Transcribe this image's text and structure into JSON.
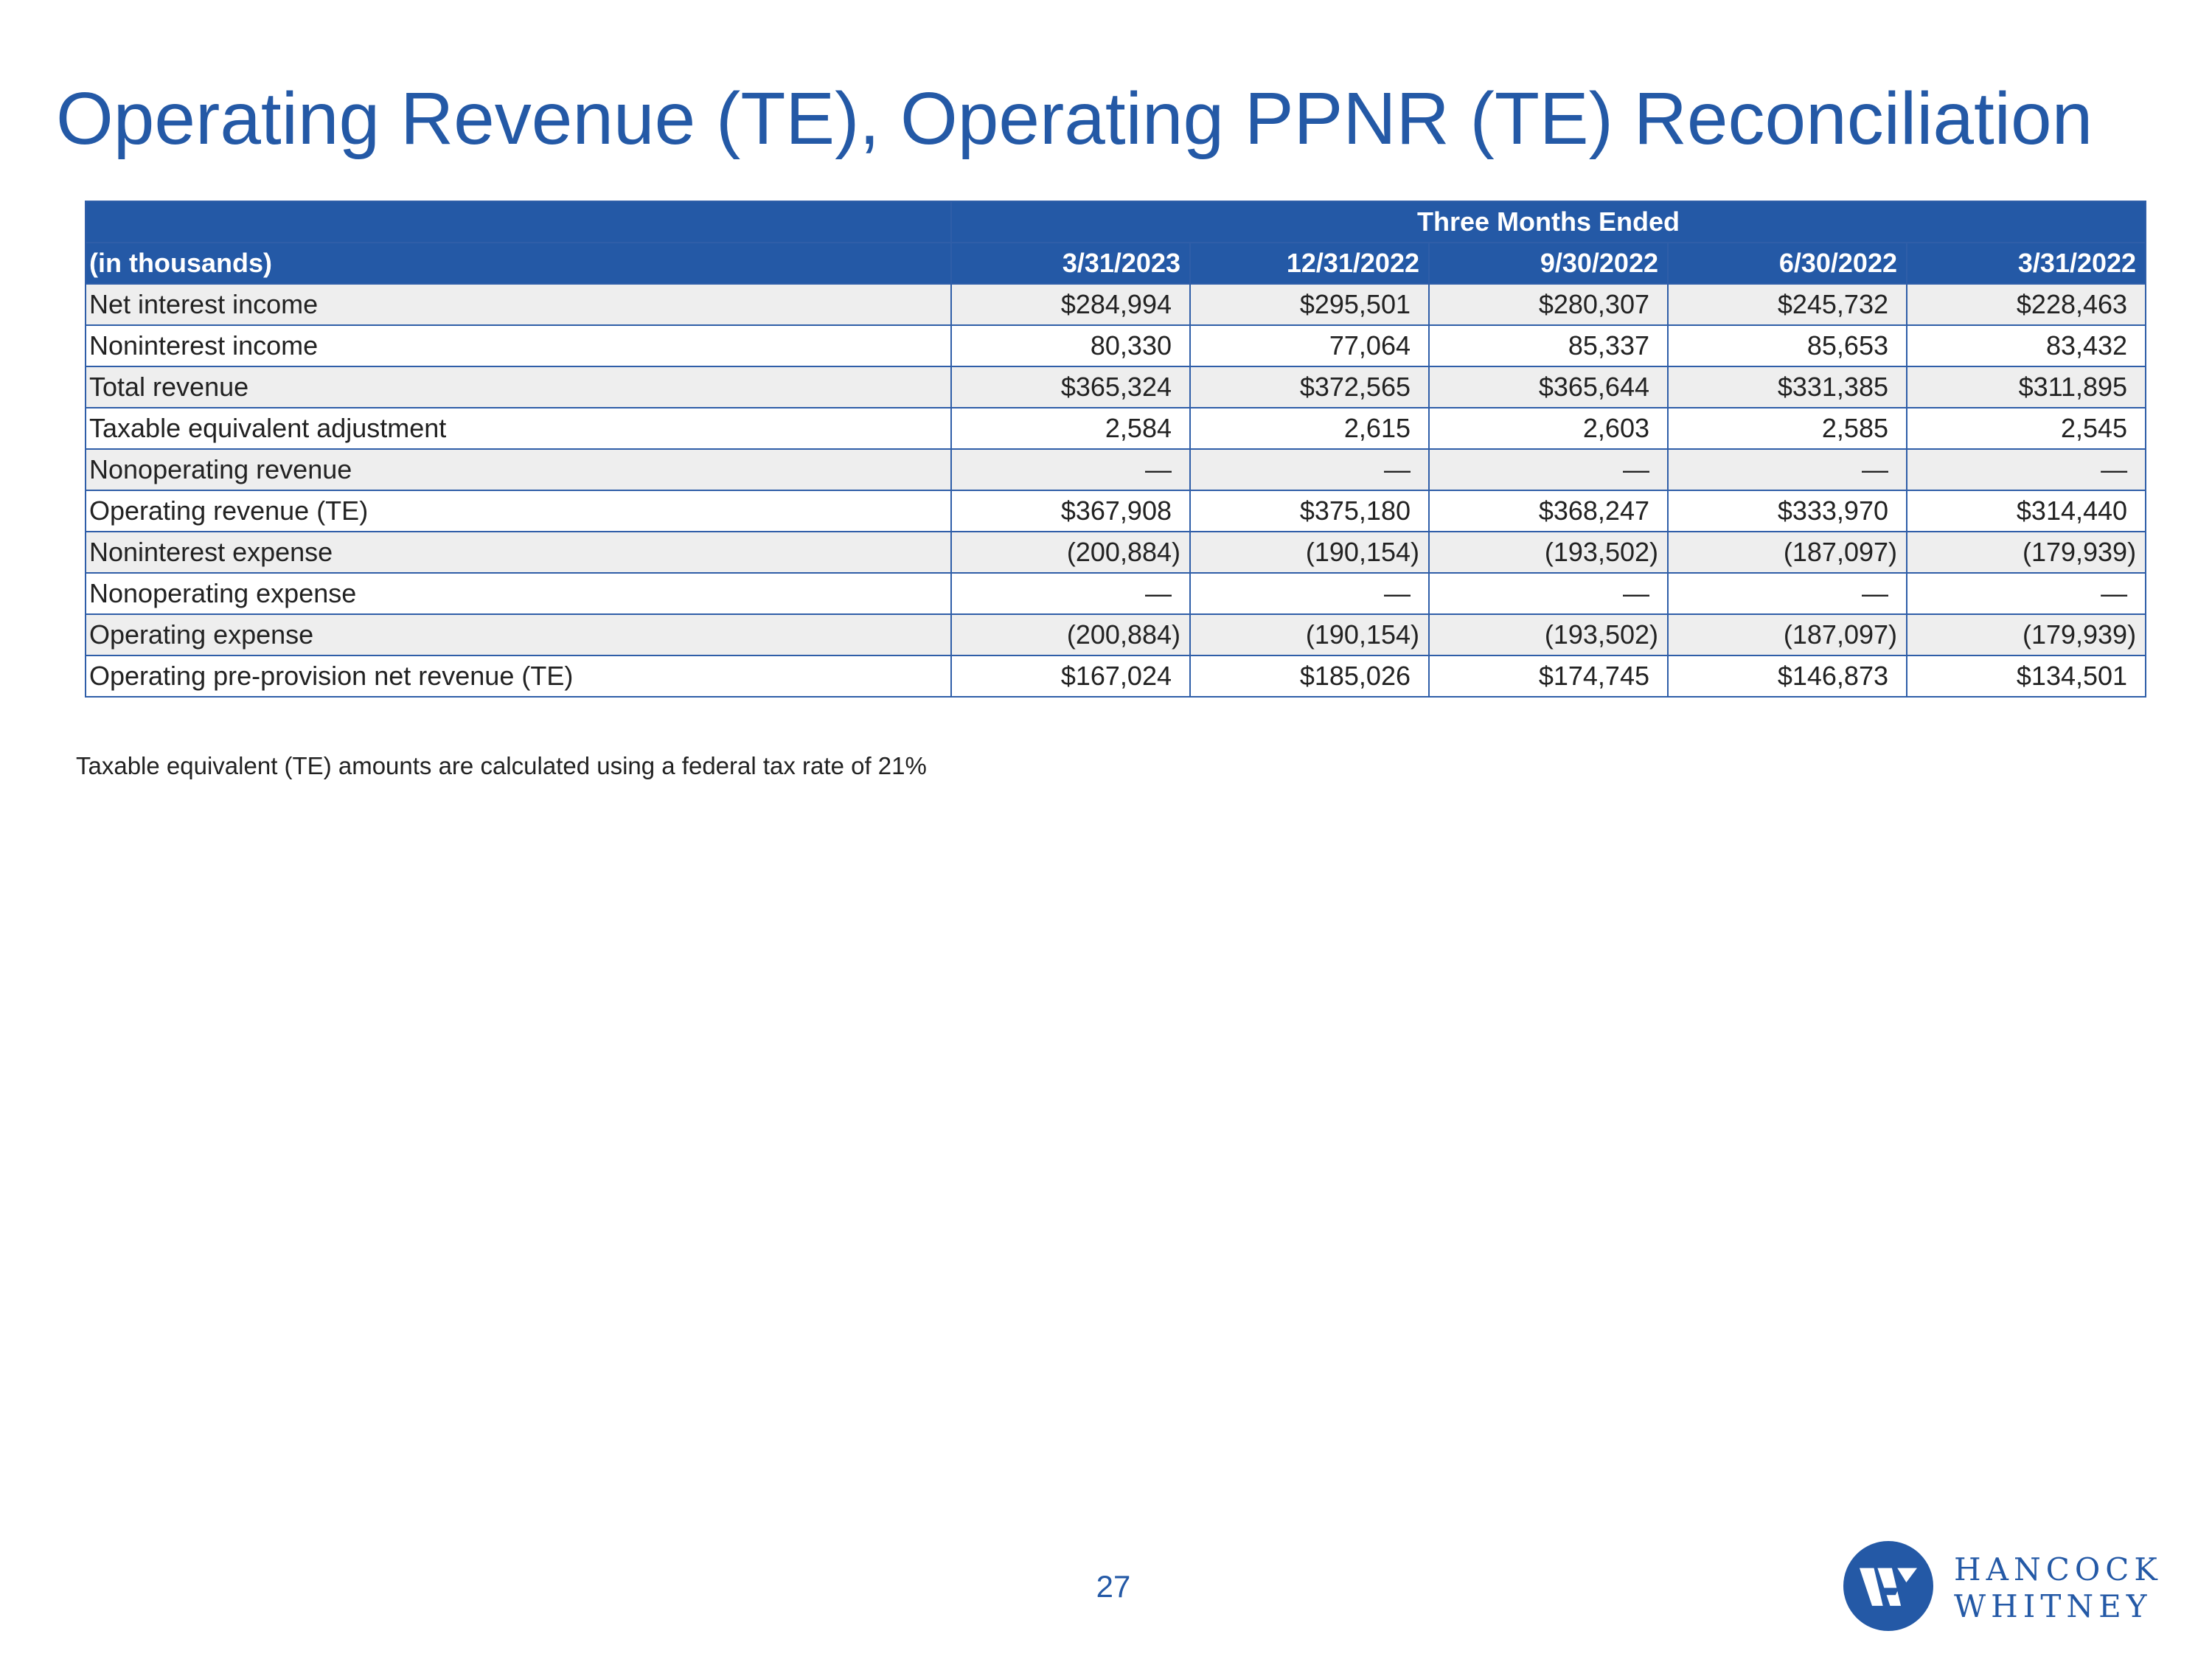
{
  "title": "Operating Revenue (TE), Operating PPNR (TE) Reconciliation",
  "table": {
    "group_header": "Three Months Ended",
    "label_header": "(in thousands)",
    "columns": [
      "3/31/2023",
      "12/31/2022",
      "9/30/2022",
      "6/30/2022",
      "3/31/2022"
    ],
    "rows": [
      {
        "label": "Net interest income",
        "values": [
          "$284,994",
          "$295,501",
          "$280,307",
          "$245,732",
          "$228,463"
        ],
        "shaded": true
      },
      {
        "label": "Noninterest income",
        "values": [
          "80,330",
          "77,064",
          "85,337",
          "85,653",
          "83,432"
        ],
        "shaded": false
      },
      {
        "label": "Total revenue",
        "values": [
          "$365,324",
          "$372,565",
          "$365,644",
          "$331,385",
          "$311,895"
        ],
        "shaded": true
      },
      {
        "label": "Taxable equivalent adjustment",
        "values": [
          "2,584",
          "2,615",
          "2,603",
          "2,585",
          "2,545"
        ],
        "shaded": false
      },
      {
        "label": "Nonoperating revenue",
        "values": [
          "—",
          "—",
          "—",
          "—",
          "—"
        ],
        "shaded": true
      },
      {
        "label": "Operating revenue (TE)",
        "values": [
          "$367,908",
          "$375,180",
          "$368,247",
          "$333,970",
          "$314,440"
        ],
        "shaded": false
      },
      {
        "label": "Noninterest expense",
        "values": [
          "(200,884)",
          "(190,154)",
          "(193,502)",
          "(187,097)",
          "(179,939)"
        ],
        "shaded": true
      },
      {
        "label": "Nonoperating expense",
        "values": [
          "—",
          "—",
          "—",
          "—",
          "—"
        ],
        "shaded": false
      },
      {
        "label": "Operating expense",
        "values": [
          "(200,884)",
          "(190,154)",
          "(193,502)",
          "(187,097)",
          "(179,939)"
        ],
        "shaded": true
      },
      {
        "label": "Operating pre-provision net revenue (TE)",
        "values": [
          "$167,024",
          "$185,026",
          "$174,745",
          "$146,873",
          "$134,501"
        ],
        "shaded": false
      }
    ]
  },
  "footnote": "Taxable equivalent (TE) amounts are calculated using a federal tax rate of 21%",
  "page_number": "27",
  "logo": {
    "line1": "HANCOCK",
    "line2": "WHITNEY",
    "icon": "hancock-whitney-logo-mark"
  },
  "colors": {
    "brand_blue": "#2459a6",
    "row_shade": "#eeeeee"
  }
}
